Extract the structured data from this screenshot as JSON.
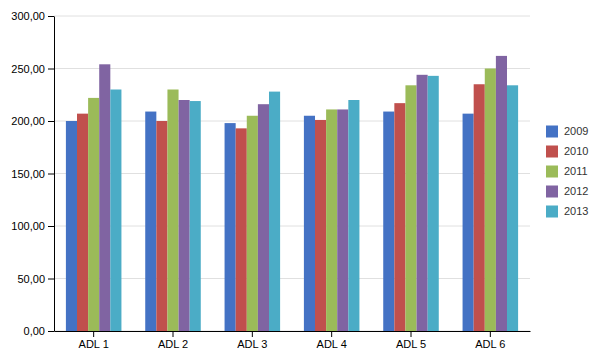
{
  "chart_data": {
    "type": "bar",
    "categories": [
      "ADL 1",
      "ADL 2",
      "ADL 3",
      "ADL 4",
      "ADL 5",
      "ADL 6"
    ],
    "series": [
      {
        "name": "2009",
        "color": "#4472C4",
        "values": [
          200,
          209,
          198,
          205,
          209,
          207
        ]
      },
      {
        "name": "2010",
        "color": "#C0504D",
        "values": [
          207,
          200,
          193,
          201,
          217,
          235
        ]
      },
      {
        "name": "2011",
        "color": "#9BBB59",
        "values": [
          222,
          230,
          205,
          211,
          234,
          250
        ]
      },
      {
        "name": "2012",
        "color": "#8064A2",
        "values": [
          254,
          220,
          216,
          211,
          244,
          262
        ]
      },
      {
        "name": "2013",
        "color": "#4BACC6",
        "values": [
          230,
          219,
          228,
          220,
          243,
          234
        ]
      }
    ],
    "ylim": [
      0,
      300
    ],
    "yticks": [
      {
        "value": 0,
        "label": "0,00"
      },
      {
        "value": 50,
        "label": "50,00"
      },
      {
        "value": 100,
        "label": "100,00"
      },
      {
        "value": 150,
        "label": "150,00"
      },
      {
        "value": 200,
        "label": "200,00"
      },
      {
        "value": 250,
        "label": "250,00"
      },
      {
        "value": 300,
        "label": "300,00"
      }
    ],
    "grid": true,
    "legend": "right"
  }
}
